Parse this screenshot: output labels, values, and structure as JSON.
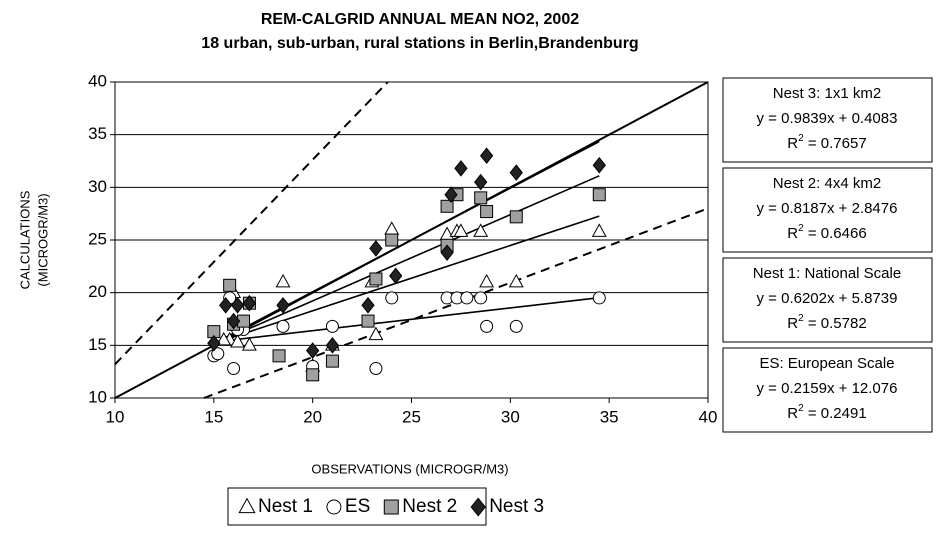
{
  "chart_data": {
    "type": "scatter",
    "title": "REM-CALGRID  ANNUAL MEAN NO2, 2002",
    "subtitle": "18 urban, sub-urban, rural  stations in Berlin,Brandenburg",
    "x_label": "OBSERVATIONS (MICROGR/M3)",
    "y_label": [
      "CALCULATIONS",
      "(MICROGR/M3)"
    ],
    "xlim": [
      10,
      40
    ],
    "ylim": [
      10,
      40
    ],
    "xticks": [
      10,
      15,
      20,
      25,
      30,
      35,
      40
    ],
    "yticks": [
      10,
      15,
      20,
      25,
      30,
      35,
      40
    ],
    "grid": true,
    "series": [
      {
        "name": "Nest 1",
        "marker": "triangle",
        "color": "#ffffff",
        "x": [
          15.8,
          16.2,
          16.8,
          18.5,
          20,
          21,
          23.2,
          24,
          26.8,
          27.3,
          27.5,
          28.5,
          28.8,
          30.3,
          34.5,
          16,
          23,
          15.5
        ],
        "values": [
          15.5,
          15.3,
          15,
          21,
          13,
          15,
          16,
          26,
          25.5,
          25.8,
          25.8,
          25.8,
          21,
          21,
          25.8,
          20,
          21,
          15.5
        ],
        "trend": {
          "slope": 0.6202,
          "intercept": 5.8739,
          "x": [
            15,
            34.5
          ]
        },
        "box": {
          "title": "Nest 1: National Scale",
          "equation": "y = 0.6202x + 5.8739",
          "r2_prefix": "R",
          "r2_sup": "2",
          "r2_value": " = 0.5782"
        }
      },
      {
        "name": "ES",
        "marker": "circle",
        "color": "#ffffff",
        "x": [
          15,
          15.2,
          15.8,
          16,
          16.5,
          18.5,
          20,
          21,
          23.2,
          24,
          26.8,
          27.3,
          27.8,
          28.5,
          28.8,
          30.3,
          34.5,
          16.2
        ],
        "values": [
          14,
          14.2,
          19.5,
          12.8,
          16.5,
          16.8,
          13,
          16.8,
          12.8,
          19.5,
          19.5,
          19.5,
          19.5,
          19.5,
          16.8,
          16.8,
          19.5,
          16.5
        ],
        "trend": {
          "slope": 0.2159,
          "intercept": 12.076,
          "x": [
            15,
            34.5
          ]
        },
        "box": {
          "title": "ES: European Scale",
          "equation": "y = 0.2159x + 12.076",
          "r2_prefix": "R",
          "r2_sup": "2",
          "r2_value": " = 0.2491"
        }
      },
      {
        "name": "Nest 2",
        "marker": "square",
        "color": "#a0a0a0",
        "x": [
          15,
          15.8,
          16,
          16.8,
          18.3,
          20,
          21,
          22.8,
          23.2,
          24,
          26.8,
          27.3,
          28.5,
          28.8,
          30.3,
          34.5,
          16.5,
          26.8
        ],
        "values": [
          16.3,
          20.7,
          17,
          19,
          14,
          12.2,
          13.5,
          17.3,
          21.3,
          25,
          28.2,
          29.3,
          29,
          27.7,
          27.2,
          29.3,
          17.3,
          24.5
        ],
        "trend": {
          "slope": 0.8187,
          "intercept": 2.8476,
          "x": [
            15,
            34.5
          ]
        },
        "box": {
          "title": "Nest 2: 4x4 km2",
          "equation": "y = 0.8187x + 2.8476",
          "r2_prefix": "R",
          "r2_sup": "2",
          "r2_value": " = 0.6466"
        }
      },
      {
        "name": "Nest 3",
        "marker": "diamond",
        "color": "#222222",
        "x": [
          15,
          15.6,
          16,
          16.8,
          18.5,
          20,
          21,
          22.8,
          23.2,
          24.2,
          26.8,
          27,
          27.5,
          28.5,
          28.8,
          30.3,
          34.5,
          16.2
        ],
        "values": [
          15.2,
          18.8,
          17.3,
          19,
          18.8,
          14.5,
          15,
          18.8,
          24.2,
          21.6,
          23.8,
          29.3,
          31.8,
          30.5,
          33,
          31.4,
          32.1,
          18.8
        ],
        "trend": {
          "slope": 0.9839,
          "intercept": 0.4083,
          "x": [
            15,
            34.5
          ]
        },
        "box": {
          "title": "Nest 3: 1x1 km2",
          "equation": "y = 0.9839x + 0.4083",
          "r2_prefix": "R",
          "r2_sup": "2",
          "r2_value": " = 0.7657"
        }
      }
    ],
    "reference_lines": [
      {
        "style": "solid",
        "x": [
          10,
          40
        ],
        "y": [
          10,
          40
        ]
      },
      {
        "style": "dashed",
        "x": [
          10,
          23.8
        ],
        "y": [
          13.2,
          40
        ]
      },
      {
        "style": "dashed",
        "x": [
          14.5,
          40
        ],
        "y": [
          10,
          28
        ]
      }
    ]
  }
}
